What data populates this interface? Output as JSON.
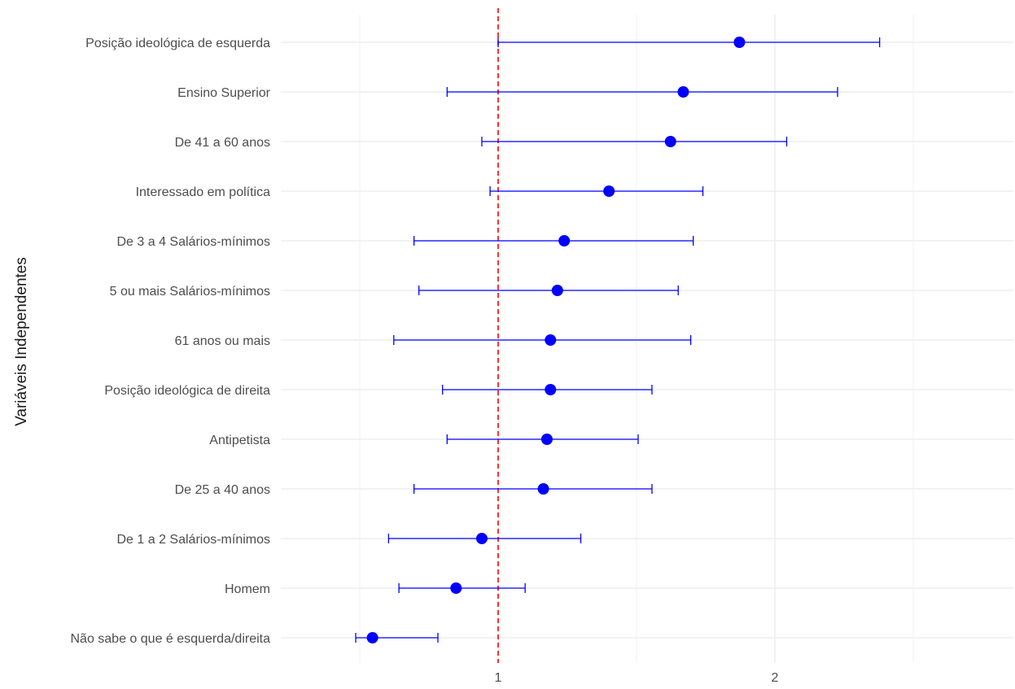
{
  "chart_data": {
    "type": "scatter",
    "title": "",
    "xlabel": "",
    "ylabel": "Variáveis Independentes",
    "x_scale": "log",
    "xlim": [
      0.75,
      2.6
    ],
    "x_ticks": [
      1,
      2
    ],
    "x_tick_labels": [
      "1",
      "2"
    ],
    "grid": true,
    "reference_line": {
      "x": 1,
      "color": "#ff0000",
      "style": "dashed"
    },
    "categories": [
      "Posição ideológica de esquerda",
      "Ensino Superior",
      "De 41 a 60 anos",
      "Interessado em política",
      "De 3 a 4 Salários-mínimos",
      "5 ou mais Salários-mínimos",
      "61 anos ou mais",
      "Posição ideológica de direita",
      "Antipetista",
      "De 25 a 40 anos",
      "De 1 a 2 Salários-mínimos",
      "Homem",
      "Não sabe o que é esquerda/direita"
    ],
    "series": [
      {
        "values": [
          1.83,
          1.59,
          1.54,
          1.32,
          1.18,
          1.16,
          1.14,
          1.14,
          1.13,
          1.12,
          0.96,
          0.9,
          0.73
        ],
        "lower": [
          1.0,
          0.88,
          0.96,
          0.98,
          0.81,
          0.82,
          0.77,
          0.87,
          0.88,
          0.81,
          0.76,
          0.78,
          0.7
        ],
        "upper": [
          2.6,
          2.34,
          2.06,
          1.67,
          1.63,
          1.57,
          1.62,
          1.47,
          1.42,
          1.47,
          1.23,
          1.07,
          0.86
        ],
        "color": "#0000ff"
      }
    ]
  }
}
